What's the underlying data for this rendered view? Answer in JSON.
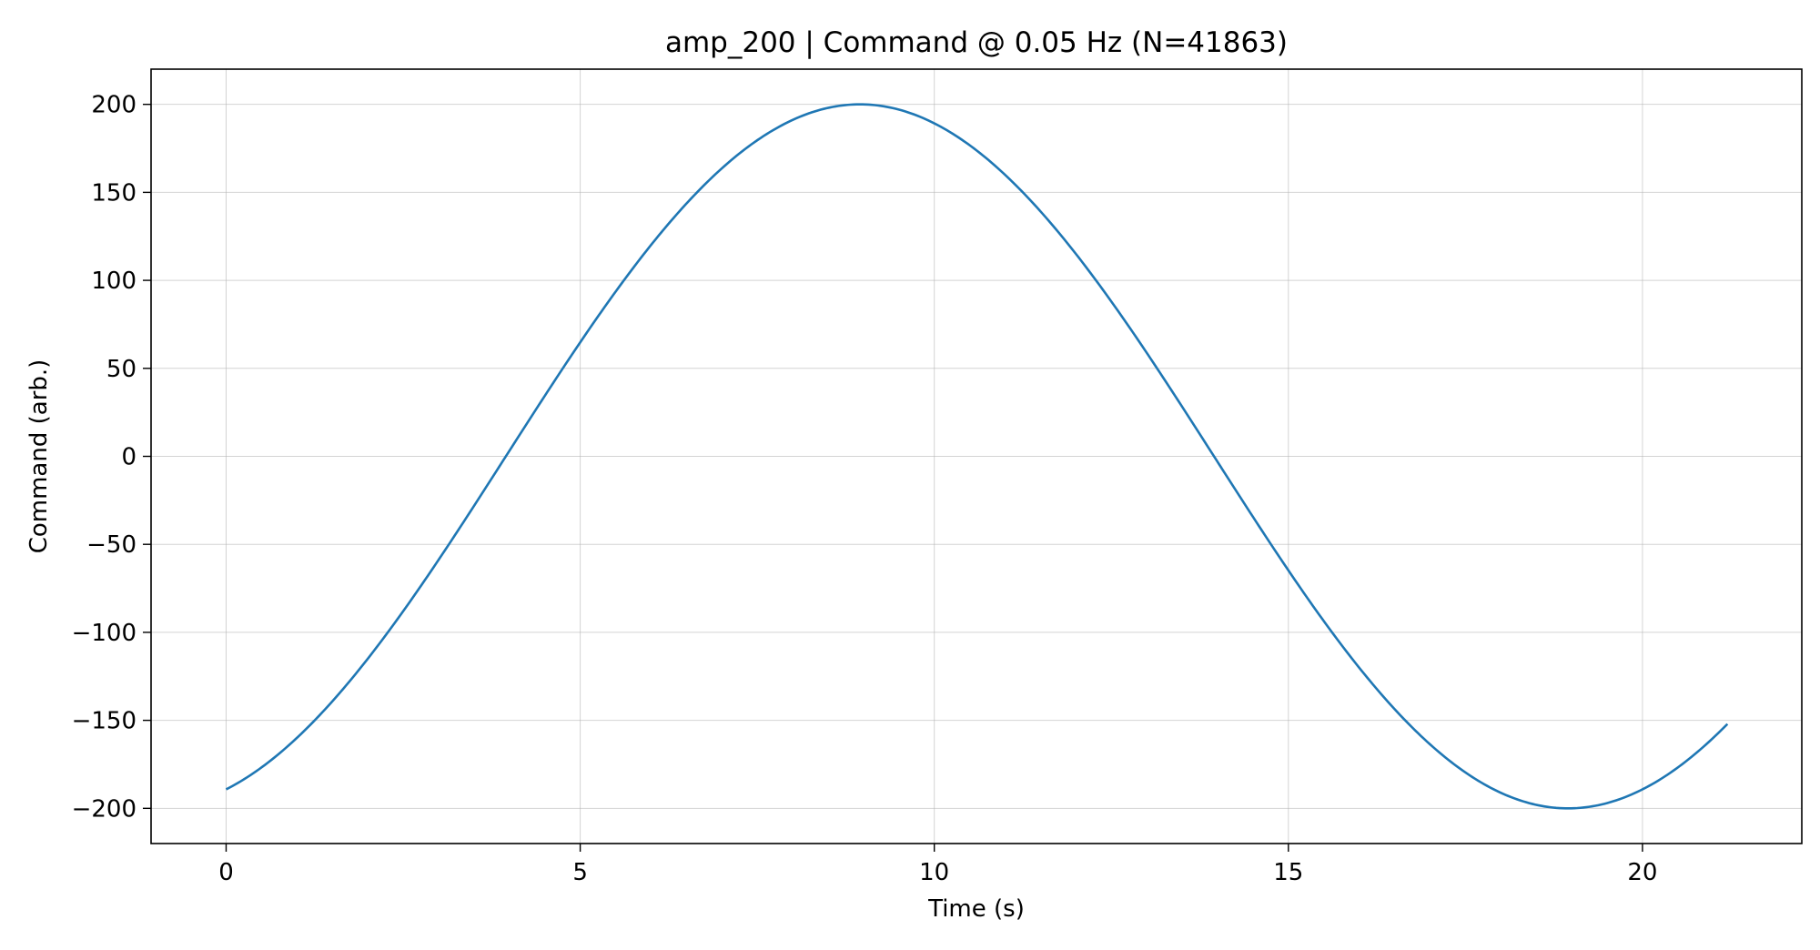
{
  "chart_data": {
    "type": "line",
    "title": "amp_200 | Command @ 0.05 Hz  (N=41863)",
    "xlabel": "Time (s)",
    "ylabel": "Command (arb.)",
    "xlim": [
      -1.06,
      22.25
    ],
    "ylim": [
      -220,
      220
    ],
    "xticks": [
      0,
      5,
      10,
      15,
      20
    ],
    "xtick_labels": [
      "0",
      "5",
      "10",
      "15",
      "20"
    ],
    "yticks": [
      200,
      150,
      100,
      50,
      0,
      -50,
      -100,
      -150,
      -200
    ],
    "ytick_labels": [
      "200",
      "150",
      "100",
      "50",
      "0",
      "−50",
      "−100",
      "−150",
      "−200"
    ],
    "grid": true,
    "series": [
      {
        "color": "#1f77b4",
        "signal": {
          "shape": "sine",
          "amplitude": 200,
          "frequency_hz": 0.05,
          "peak_time_s": 8.95,
          "t_start": 0,
          "t_end": 21.2
        }
      }
    ]
  }
}
